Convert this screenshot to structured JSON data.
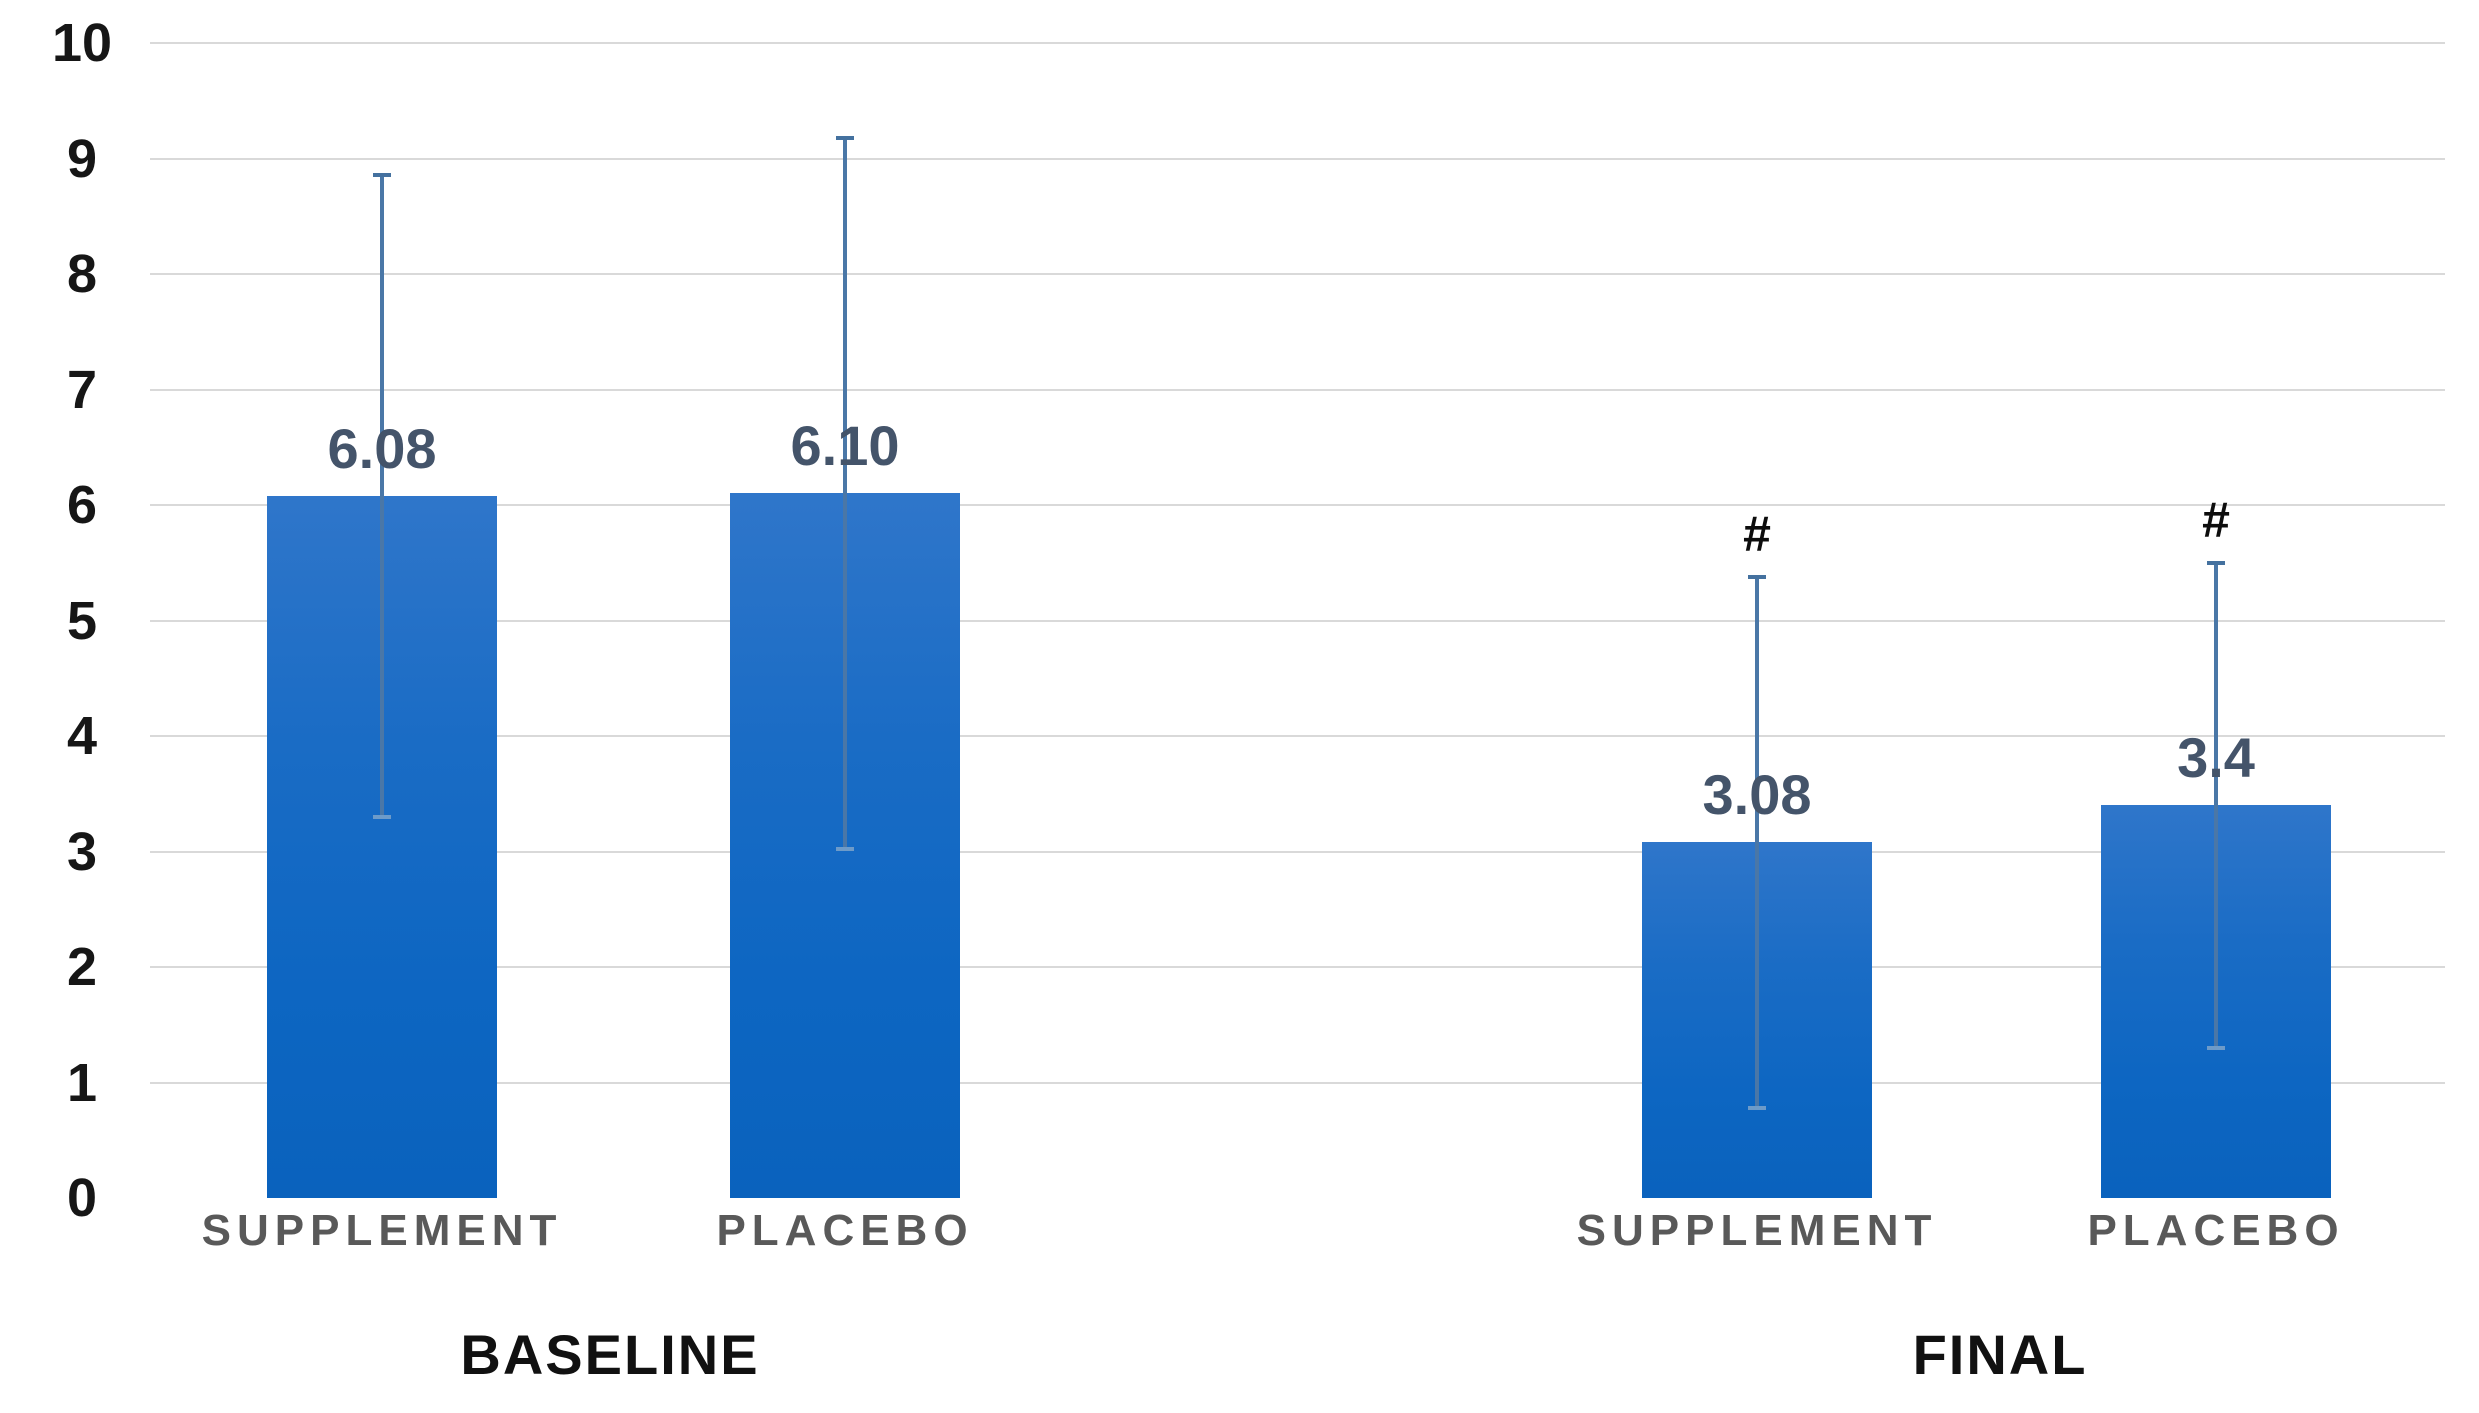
{
  "chart_data": {
    "type": "bar",
    "title": "",
    "xlabel": "",
    "ylabel": "",
    "ylim": [
      0,
      10
    ],
    "yticks": [
      "0",
      "1",
      "2",
      "3",
      "4",
      "5",
      "6",
      "7",
      "8",
      "9",
      "10"
    ],
    "grid": true,
    "legend_position": "none",
    "bar_color": "#0d66c2",
    "error_bar_color": "#4a77a7",
    "value_label_color": "#44546a",
    "category_label_color": "#595959",
    "group_label_color": "#111111",
    "gridline_color": "#d9d9d9",
    "groups": [
      {
        "label": "BASELINE",
        "bars": [
          {
            "category": "SUPPLEMENT",
            "value": 6.08,
            "value_label": "6.08",
            "error": 2.78,
            "error_top": 8.86,
            "error_bottom": 3.3,
            "marker": ""
          },
          {
            "category": "PLACEBO",
            "value": 6.1,
            "value_label": "6.10",
            "error": 3.08,
            "error_top": 9.18,
            "error_bottom": 3.02,
            "marker": ""
          }
        ]
      },
      {
        "label": "FINAL",
        "bars": [
          {
            "category": "SUPPLEMENT",
            "value": 3.08,
            "value_label": "3.08",
            "error": 2.3,
            "error_top": 5.38,
            "error_bottom": 0.78,
            "marker": "#"
          },
          {
            "category": "PLACEBO",
            "value": 3.4,
            "value_label": "3.4",
            "error": 2.1,
            "error_top": 5.5,
            "error_bottom": 1.3,
            "marker": "#"
          }
        ]
      }
    ]
  }
}
